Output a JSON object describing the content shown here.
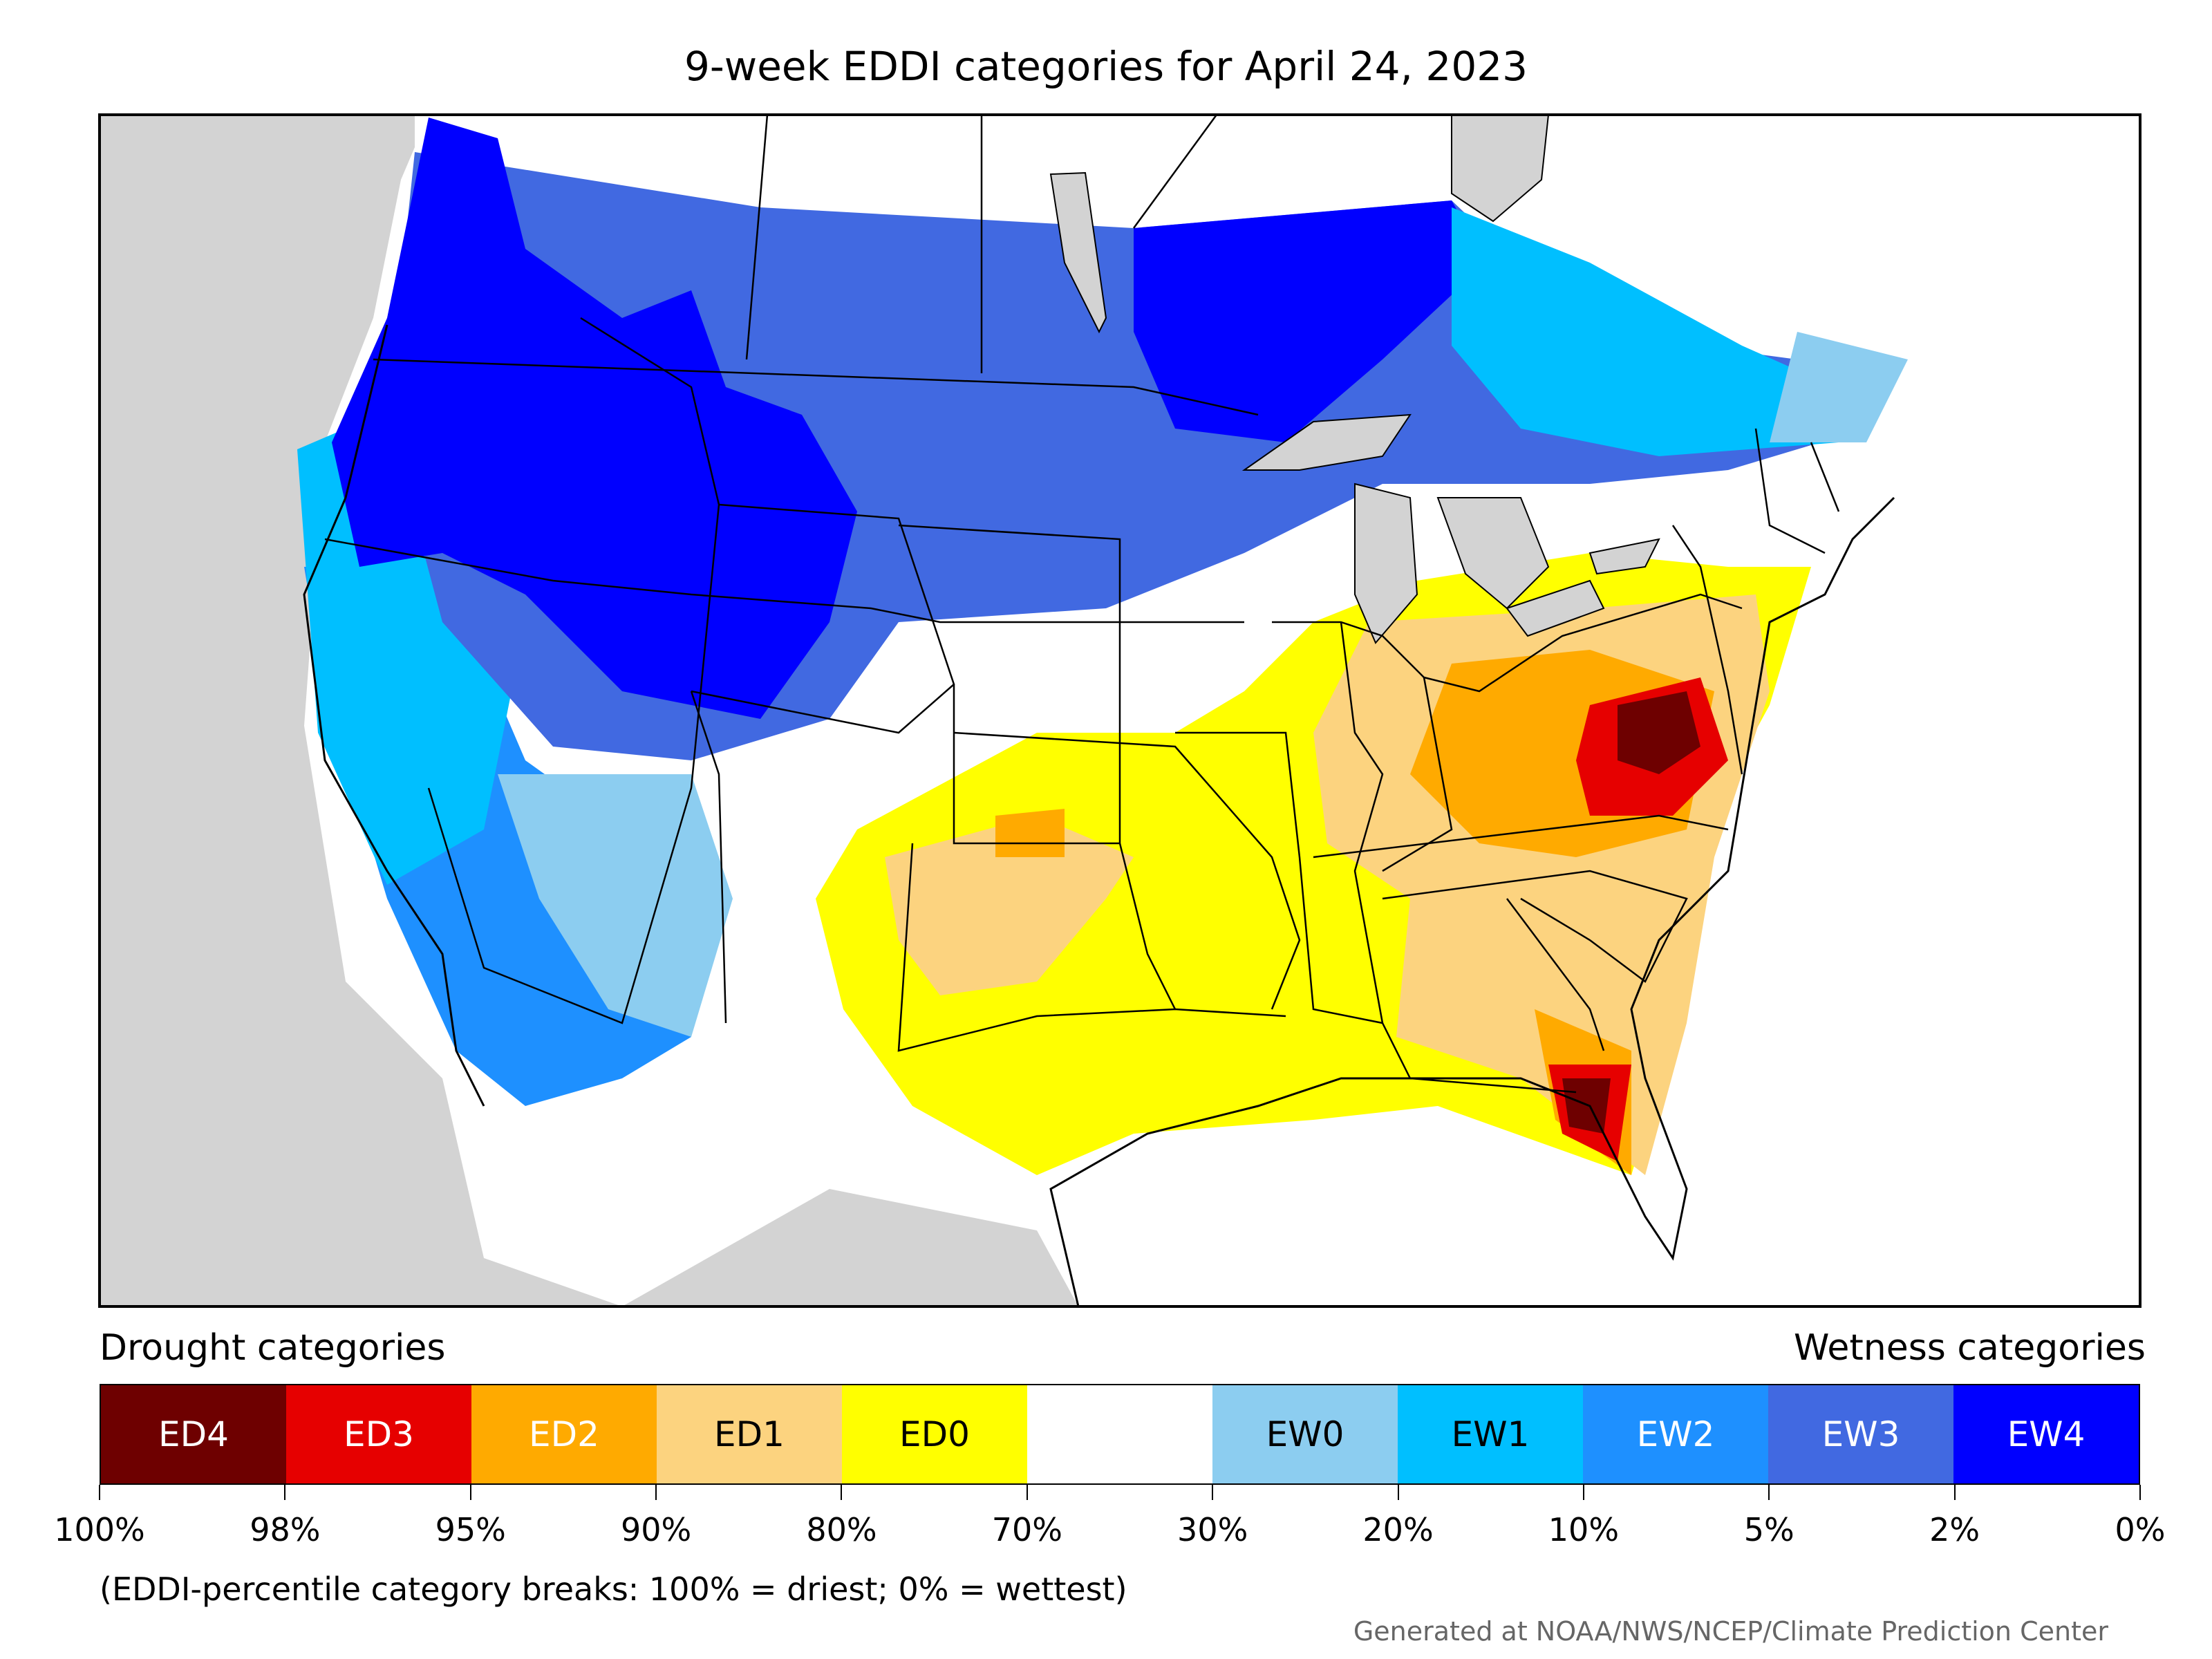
{
  "title": "9-week EDDI categories for April 24, 2023",
  "legend": {
    "drought_heading": "Drought categories",
    "wetness_heading": "Wetness categories",
    "categories": [
      {
        "label": "ED4",
        "color": "#6e0000",
        "text_color": "#ffffff"
      },
      {
        "label": "ED3",
        "color": "#e60000",
        "text_color": "#ffffff"
      },
      {
        "label": "ED2",
        "color": "#ffaa00",
        "text_color": "#ffffff"
      },
      {
        "label": "ED1",
        "color": "#fcd37f",
        "text_color": "#000000"
      },
      {
        "label": "ED0",
        "color": "#ffff00",
        "text_color": "#000000"
      },
      {
        "label": "",
        "color": "#ffffff",
        "text_color": "#000000"
      },
      {
        "label": "EW0",
        "color": "#8ccdf0",
        "text_color": "#000000"
      },
      {
        "label": "EW1",
        "color": "#00bfff",
        "text_color": "#000000"
      },
      {
        "label": "EW2",
        "color": "#1e90ff",
        "text_color": "#ffffff"
      },
      {
        "label": "EW3",
        "color": "#4169e1",
        "text_color": "#ffffff"
      },
      {
        "label": "EW4",
        "color": "#0000ff",
        "text_color": "#ffffff"
      }
    ],
    "ticks": [
      "100%",
      "98%",
      "95%",
      "90%",
      "80%",
      "70%",
      "30%",
      "20%",
      "10%",
      "5%",
      "2%",
      "0%"
    ]
  },
  "note": "(EDDI-percentile category breaks: 100% = driest; 0% = wettest)",
  "credit": "Generated at NOAA/NWS/NCEP/Climate Prediction Center"
}
